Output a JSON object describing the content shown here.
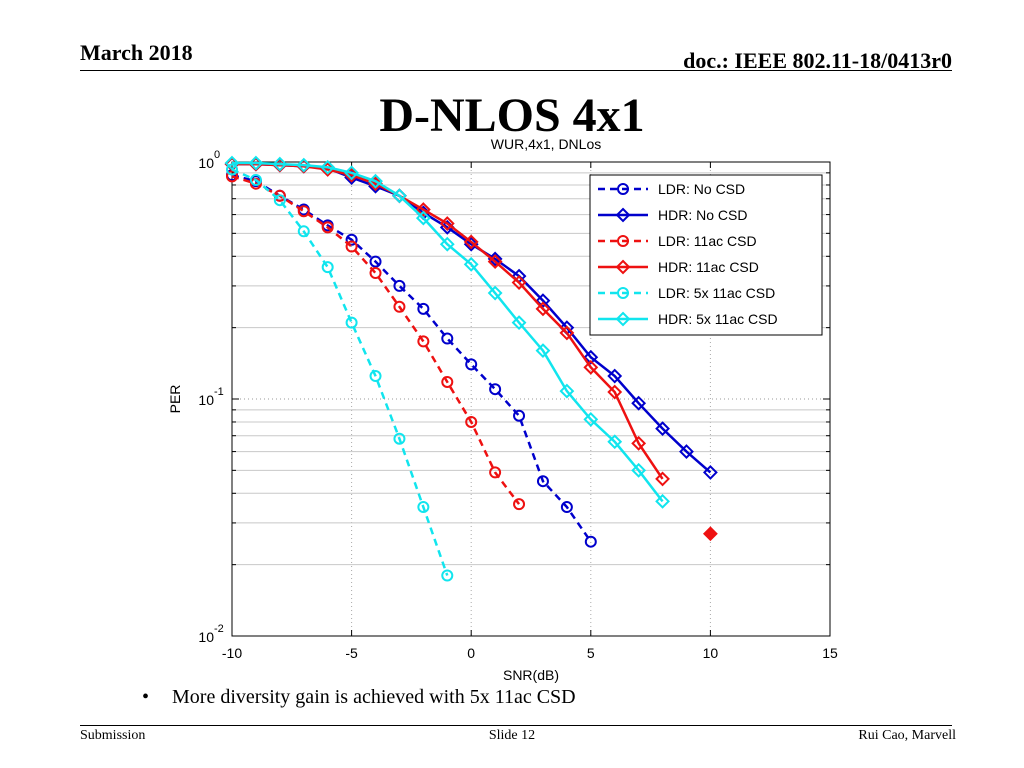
{
  "header": {
    "date": "March 2018",
    "doc": "doc.: IEEE 802.11-18/0413r0"
  },
  "slide_title": "D-NLOS 4x1",
  "bullet": {
    "symbol": "•",
    "text": "More diversity gain is achieved with 5x 11ac CSD"
  },
  "footer": {
    "left": "Submission",
    "center": "Slide 12",
    "right": "Rui Cao, Marvell"
  },
  "colors": {
    "blue": "#0000cc",
    "red": "#ee1111",
    "cyan": "#11e5ee"
  },
  "chart_data": {
    "type": "line",
    "title": "WUR,4x1, DNLos",
    "xlabel": "SNR(dB)",
    "ylabel": "PER",
    "xlim": [
      -10,
      15
    ],
    "ylim": [
      0.01,
      1
    ],
    "yscale": "log",
    "grid": true,
    "xticks": [
      -10,
      -5,
      0,
      5,
      10,
      15
    ],
    "xtick_labels": [
      "-10",
      "-5",
      "0",
      "5",
      "10",
      "15"
    ],
    "yticks": [
      {
        "value": 1,
        "base": "10",
        "exp": "0"
      },
      {
        "value": 0.1,
        "base": "10",
        "exp": "-1"
      },
      {
        "value": 0.01,
        "base": "10",
        "exp": "-2"
      }
    ],
    "legend_position": "top-right",
    "series": [
      {
        "name": "LDR: No CSD",
        "color": "#0000cc",
        "dash": true,
        "marker": "circle",
        "x": [
          -10,
          -9,
          -8,
          -7,
          -6,
          -5,
          -4,
          -3,
          -2,
          -1,
          0,
          1,
          2,
          3,
          4,
          5
        ],
        "y": [
          0.88,
          0.83,
          0.72,
          0.63,
          0.54,
          0.47,
          0.38,
          0.3,
          0.24,
          0.18,
          0.14,
          0.11,
          0.085,
          0.045,
          0.035,
          0.025
        ]
      },
      {
        "name": "HDR: No CSD",
        "color": "#0000cc",
        "dash": false,
        "marker": "diamond",
        "x": [
          -10,
          -9,
          -8,
          -7,
          -6,
          -5,
          -4,
          -3,
          -2,
          -1,
          0,
          1,
          2,
          3,
          4,
          5,
          6,
          7,
          8,
          9,
          10
        ],
        "y": [
          0.98,
          0.98,
          0.97,
          0.96,
          0.94,
          0.86,
          0.79,
          0.72,
          0.61,
          0.53,
          0.45,
          0.39,
          0.33,
          0.26,
          0.2,
          0.15,
          0.125,
          0.096,
          0.075,
          0.06,
          0.049
        ]
      },
      {
        "name": "LDR: 11ac CSD",
        "color": "#ee1111",
        "dash": true,
        "marker": "circle",
        "x": [
          -10,
          -9,
          -8,
          -7,
          -6,
          -5,
          -4,
          -3,
          -2,
          -1,
          0,
          1,
          2
        ],
        "y": [
          0.87,
          0.81,
          0.72,
          0.62,
          0.53,
          0.44,
          0.34,
          0.245,
          0.175,
          0.118,
          0.08,
          0.049,
          0.036
        ]
      },
      {
        "name": "HDR: 11ac CSD",
        "color": "#ee1111",
        "dash": false,
        "marker": "diamond",
        "x": [
          -10,
          -9,
          -8,
          -7,
          -6,
          -5,
          -4,
          -3,
          -2,
          -1,
          0,
          1,
          2,
          3,
          4,
          5,
          6,
          7,
          8
        ],
        "y": [
          0.98,
          0.98,
          0.97,
          0.96,
          0.93,
          0.88,
          0.81,
          0.72,
          0.63,
          0.55,
          0.46,
          0.38,
          0.31,
          0.24,
          0.19,
          0.136,
          0.107,
          0.065,
          0.046
        ]
      },
      {
        "name": "LDR: 5x 11ac CSD",
        "color": "#11e5ee",
        "dash": true,
        "marker": "circle",
        "x": [
          -10,
          -9,
          -8,
          -7,
          -6,
          -5,
          -4,
          -3,
          -2,
          -1
        ],
        "y": [
          0.93,
          0.84,
          0.69,
          0.51,
          0.36,
          0.21,
          0.125,
          0.068,
          0.035,
          0.018
        ]
      },
      {
        "name": "HDR: 5x 11ac CSD",
        "color": "#11e5ee",
        "dash": false,
        "marker": "diamond",
        "x": [
          -10,
          -9,
          -8,
          -7,
          -6,
          -5,
          -4,
          -3,
          -2,
          -1,
          0,
          1,
          2,
          3,
          4,
          5,
          6,
          7,
          8
        ],
        "y": [
          0.99,
          0.99,
          0.98,
          0.97,
          0.95,
          0.9,
          0.83,
          0.72,
          0.58,
          0.45,
          0.37,
          0.28,
          0.21,
          0.16,
          0.108,
          0.082,
          0.066,
          0.05,
          0.037
        ]
      }
    ],
    "extra_points": [
      {
        "x": 10,
        "y": 0.027,
        "color": "#ee1111",
        "marker": "diamond-filled"
      }
    ]
  }
}
